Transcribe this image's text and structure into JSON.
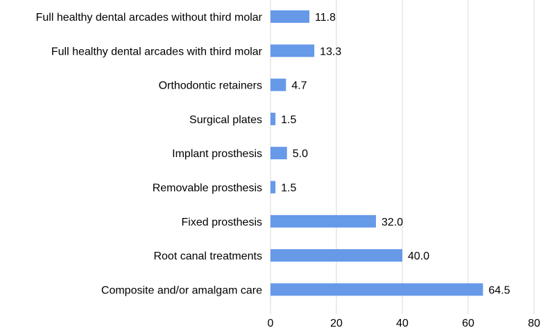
{
  "chart_data": {
    "type": "bar",
    "orientation": "horizontal",
    "categories": [
      "Full healthy dental arcades without third molar",
      "Full healthy dental arcades with third molar",
      "Orthodontic retainers",
      "Surgical plates",
      "Implant prosthesis",
      "Removable prosthesis",
      "Fixed prosthesis",
      "Root canal treatments",
      "Composite and/or amalgam care"
    ],
    "values": [
      11.8,
      13.3,
      4.7,
      1.5,
      5.0,
      1.5,
      32.0,
      40.0,
      64.5
    ],
    "value_labels": [
      "11.8",
      "13.3",
      "4.7",
      "1.5",
      "5.0",
      "1.5",
      "32.0",
      "40.0",
      "64.5"
    ],
    "xlim": [
      0,
      80
    ],
    "xticks": [
      "0",
      "20",
      "40",
      "60",
      "80"
    ],
    "grid": true,
    "bar_color": "#6699e8",
    "grid_color": "#d9d9d9",
    "title": "",
    "xlabel": "",
    "ylabel": ""
  }
}
